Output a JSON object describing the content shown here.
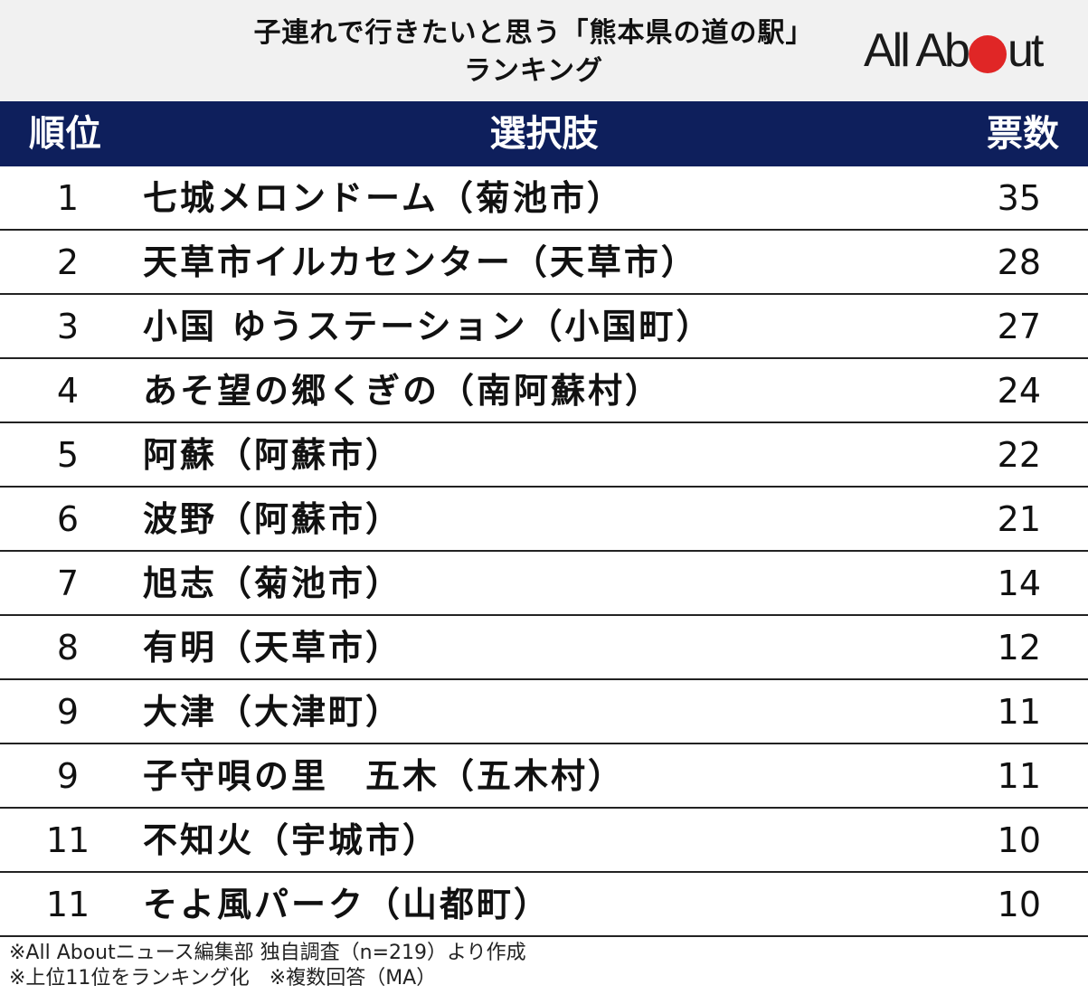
{
  "header": {
    "title_line1": "子連れで行きたいと思う「熊本県の道の駅」",
    "title_line2": "ランキング",
    "logo": {
      "text_before": "All Ab",
      "text_after": "ut",
      "dot_color": "#e02626"
    }
  },
  "table": {
    "columns": [
      "順位",
      "選択肢",
      "票数"
    ],
    "header_bg": "#0e1f5c",
    "rows": [
      {
        "rank": "1",
        "name": "七城メロンドーム（菊池市）",
        "votes": "35"
      },
      {
        "rank": "2",
        "name": "天草市イルカセンター（天草市）",
        "votes": "28"
      },
      {
        "rank": "3",
        "name": "小国 ゆうステーション（小国町）",
        "votes": "27"
      },
      {
        "rank": "4",
        "name": "あそ望の郷くぎの（南阿蘇村）",
        "votes": "24"
      },
      {
        "rank": "5",
        "name": "阿蘇（阿蘇市）",
        "votes": "22"
      },
      {
        "rank": "6",
        "name": "波野（阿蘇市）",
        "votes": "21"
      },
      {
        "rank": "7",
        "name": "旭志（菊池市）",
        "votes": "14"
      },
      {
        "rank": "8",
        "name": "有明（天草市）",
        "votes": "12"
      },
      {
        "rank": "9",
        "name": "大津（大津町）",
        "votes": "11"
      },
      {
        "rank": "9",
        "name": "子守唄の里　五木（五木村）",
        "votes": "11"
      },
      {
        "rank": "11",
        "name": "不知火（宇城市）",
        "votes": "10"
      },
      {
        "rank": "11",
        "name": "そよ風パーク（山都町）",
        "votes": "10"
      }
    ]
  },
  "footnotes": {
    "line1": "※All Aboutニュース編集部 独自調査（n=219）より作成",
    "line2": "※上位11位をランキング化　※複数回答（MA）"
  },
  "chart_data": {
    "type": "table",
    "title": "子連れで行きたいと思う「熊本県の道の駅」ランキング",
    "columns": [
      "順位",
      "選択肢",
      "票数"
    ],
    "categories": [
      "七城メロンドーム（菊池市）",
      "天草市イルカセンター（天草市）",
      "小国 ゆうステーション（小国町）",
      "あそ望の郷くぎの（南阿蘇村）",
      "阿蘇（阿蘇市）",
      "波野（阿蘇市）",
      "旭志（菊池市）",
      "有明（天草市）",
      "大津（大津町）",
      "子守唄の里　五木（五木村）",
      "不知火（宇城市）",
      "そよ風パーク（山都町）"
    ],
    "ranks": [
      1,
      2,
      3,
      4,
      5,
      6,
      7,
      8,
      9,
      9,
      11,
      11
    ],
    "values": [
      35,
      28,
      27,
      24,
      22,
      21,
      14,
      12,
      11,
      11,
      10,
      10
    ],
    "n": 219
  }
}
